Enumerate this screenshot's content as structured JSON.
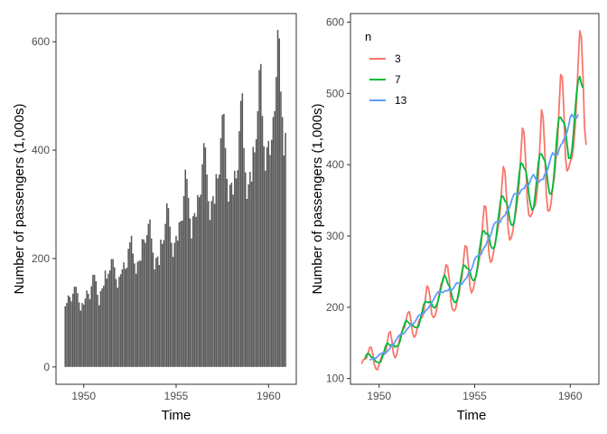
{
  "chart_data": [
    {
      "type": "bar",
      "xlabel": "Time",
      "ylabel": "Number of passengers (1,000s)",
      "xlim": [
        1948.5,
        1961.5
      ],
      "ylim": [
        -32,
        652
      ],
      "xticks": [
        "1950",
        "1955",
        "1960"
      ],
      "yticks": [
        "0",
        "200",
        "400",
        "600"
      ],
      "grid": false,
      "bar_color": "#595959",
      "x_start": 1949,
      "x_step": 0.0833333,
      "values": [
        112,
        118,
        132,
        129,
        121,
        135,
        148,
        148,
        136,
        119,
        104,
        118,
        115,
        126,
        141,
        135,
        125,
        149,
        170,
        170,
        158,
        133,
        114,
        140,
        145,
        150,
        178,
        163,
        172,
        178,
        199,
        199,
        184,
        162,
        146,
        166,
        171,
        180,
        193,
        181,
        183,
        218,
        230,
        242,
        209,
        191,
        172,
        194,
        196,
        196,
        236,
        235,
        229,
        243,
        264,
        272,
        237,
        211,
        180,
        201,
        204,
        188,
        235,
        227,
        234,
        264,
        302,
        293,
        259,
        229,
        203,
        229,
        242,
        233,
        267,
        269,
        270,
        315,
        364,
        347,
        312,
        274,
        237,
        278,
        284,
        277,
        317,
        313,
        318,
        374,
        413,
        405,
        355,
        306,
        271,
        306,
        315,
        301,
        356,
        348,
        355,
        422,
        465,
        467,
        404,
        347,
        305,
        336,
        340,
        318,
        362,
        348,
        363,
        435,
        491,
        505,
        404,
        359,
        310,
        337,
        360,
        342,
        406,
        396,
        420,
        472,
        548,
        559,
        463,
        407,
        362,
        405,
        417,
        391,
        419,
        461,
        472,
        535,
        622,
        606,
        508,
        461,
        390,
        432
      ]
    },
    {
      "type": "line",
      "xlabel": "Time",
      "ylabel": "Number of passengers (1,000s)",
      "xlim": [
        1948.5,
        1961.5
      ],
      "ylim": [
        92,
        612
      ],
      "xticks": [
        "1950",
        "1955",
        "1960"
      ],
      "yticks": [
        "100",
        "200",
        "300",
        "400",
        "500",
        "600"
      ],
      "grid": false,
      "legend": {
        "title": "n",
        "position": "top-left"
      },
      "x_start": 1949,
      "x_step": 0.0833333,
      "series": [
        {
          "name": "3",
          "color": "#F8766D",
          "method": "centered moving average, window 3"
        },
        {
          "name": "7",
          "color": "#00BA38",
          "method": "centered moving average, window 7"
        },
        {
          "name": "13",
          "color": "#619CFF",
          "method": "centered moving average, window 13"
        }
      ]
    }
  ]
}
